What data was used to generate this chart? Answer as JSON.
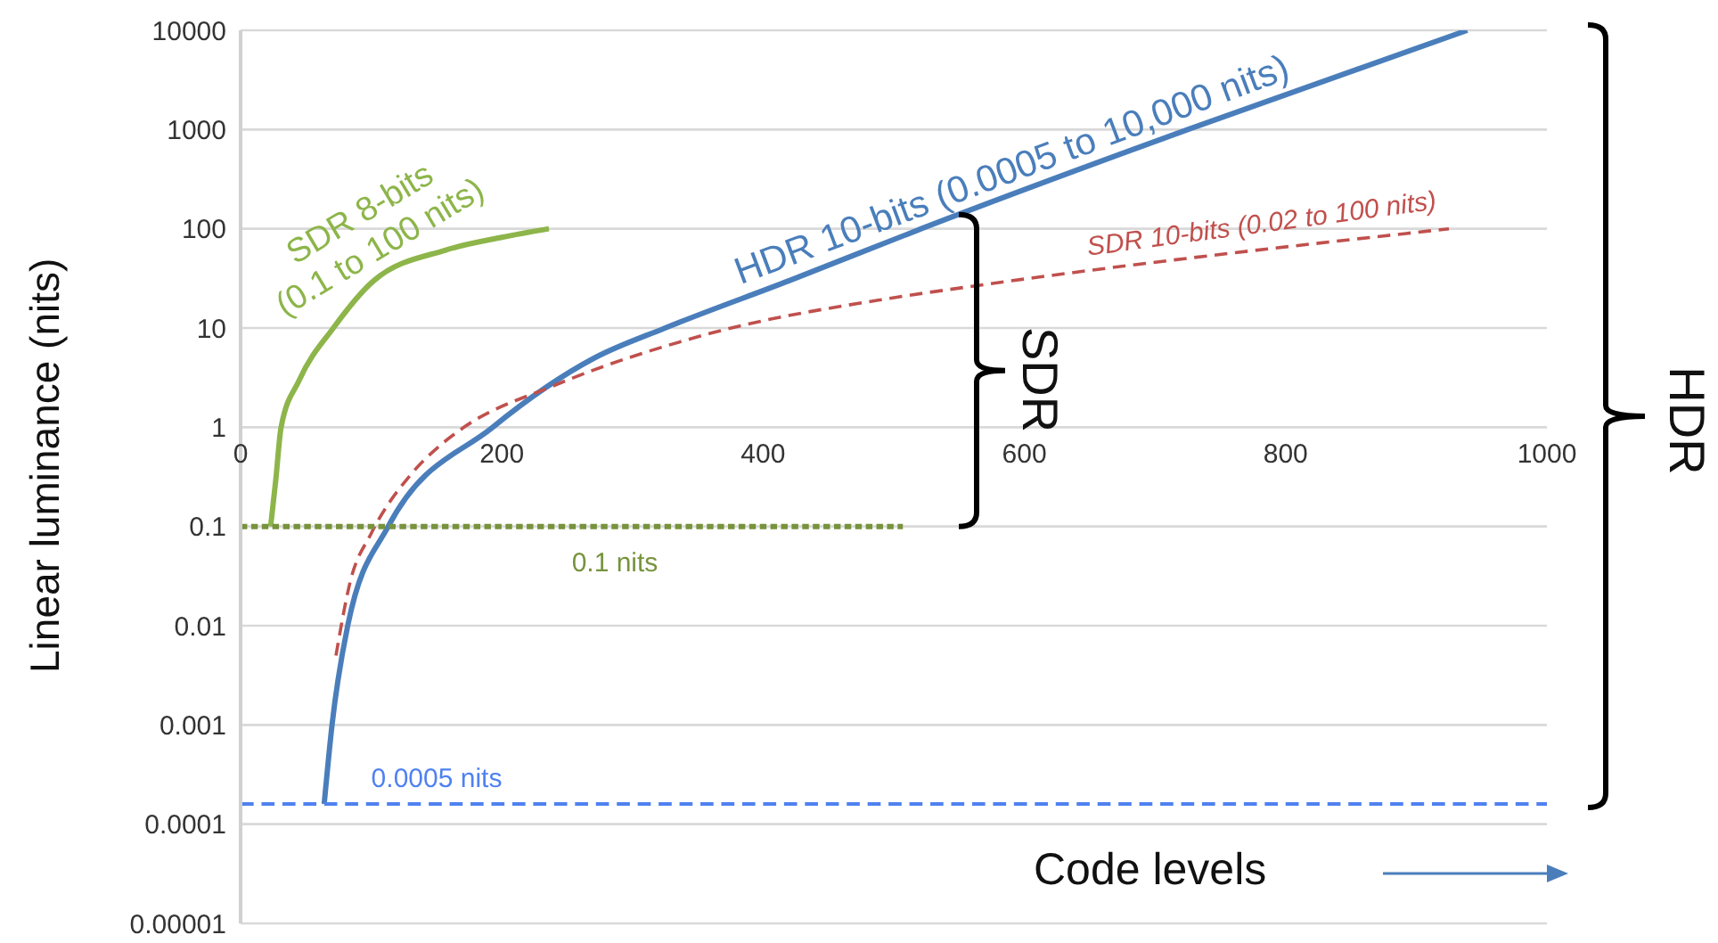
{
  "chart_data": {
    "type": "line",
    "xlabel": "Code levels",
    "ylabel": "Linear luminance (nits)",
    "log": "y",
    "grid": "y",
    "marker": "none",
    "xlim": [
      0,
      1000
    ],
    "xticks": [
      0,
      200,
      400,
      600,
      800,
      1000
    ],
    "ylim": [
      1e-05,
      10000
    ],
    "yticks": [
      {
        "value": 1e-05,
        "label": "0.00001"
      },
      0.0001,
      0.001,
      0.01,
      0.1,
      1,
      10,
      100,
      1000,
      10000
    ],
    "annotations": [
      "SDR",
      "HDR"
    ],
    "series": [
      {
        "name": "SDR 8-bits\n(0.1 to 100 nits)",
        "color": "#8db54a",
        "line_style": "solid",
        "x": [
          23,
          27,
          31,
          45,
          71,
          102,
          157,
          200,
          236
        ],
        "values": [
          0.1,
          0.3,
          1,
          3,
          10,
          30,
          61,
          82,
          100
        ]
      },
      {
        "name": "HDR 10-bits (0.0005 to 10,000 nits)",
        "color": "#4a7ebb",
        "line_style": "solid",
        "x": [
          64,
          70,
          82,
          113,
          193,
          271,
          325,
          420,
          521,
          725,
          939
        ],
        "values": [
          0.00016,
          0.001,
          0.01,
          0.1,
          1,
          5,
          10,
          30,
          100,
          1000,
          10000
        ]
      },
      {
        "name": "SDR 10-bits (0.02 to 100 nits)",
        "color": "#c0504d",
        "line_style": "dashed",
        "x": [
          73,
          84,
          100,
          130,
          153,
          171,
          239,
          362,
          498,
          566,
          925
        ],
        "values": [
          0.005,
          0.028,
          0.085,
          0.33,
          0.66,
          1,
          2.6,
          9,
          20,
          27,
          100
        ]
      },
      {
        "name": "0.1 nits",
        "color": "#77933c",
        "line_style": "dashed",
        "x": [
          0,
          507
        ],
        "values": [
          0.1,
          0.1
        ]
      },
      {
        "name": "0.0005 nits",
        "color": "#4f81f0",
        "line_style": "dashed",
        "x": [
          0,
          1000
        ],
        "values": [
          0.00016,
          0.00016
        ]
      }
    ]
  }
}
